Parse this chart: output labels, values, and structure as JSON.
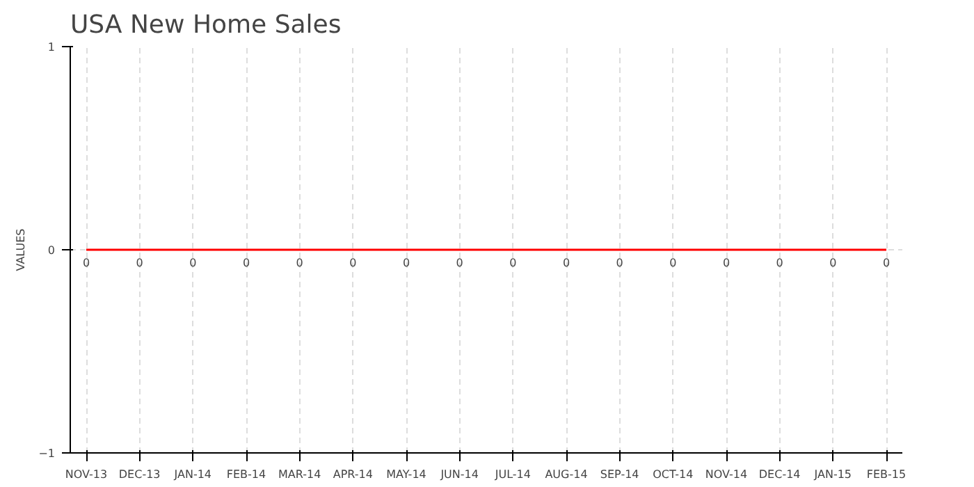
{
  "chart_data": {
    "type": "line",
    "title": "USA New Home Sales",
    "ylabel": "VALUES",
    "categories": [
      "NOV-13",
      "DEC-13",
      "JAN-14",
      "FEB-14",
      "MAR-14",
      "APR-14",
      "MAY-14",
      "JUN-14",
      "JUL-14",
      "AUG-14",
      "SEP-14",
      "OCT-14",
      "NOV-14",
      "DEC-14",
      "JAN-15",
      "FEB-15"
    ],
    "series": [
      {
        "color": "#ff0000",
        "values": [
          0,
          0,
          0,
          0,
          0,
          0,
          0,
          0,
          0,
          0,
          0,
          0,
          0,
          0,
          0,
          0
        ]
      }
    ],
    "ylim": [
      -1,
      1
    ],
    "yticks": [
      -1,
      0,
      1
    ],
    "grid": true,
    "data_labels": true,
    "marker": "none",
    "line_style": "solid"
  }
}
